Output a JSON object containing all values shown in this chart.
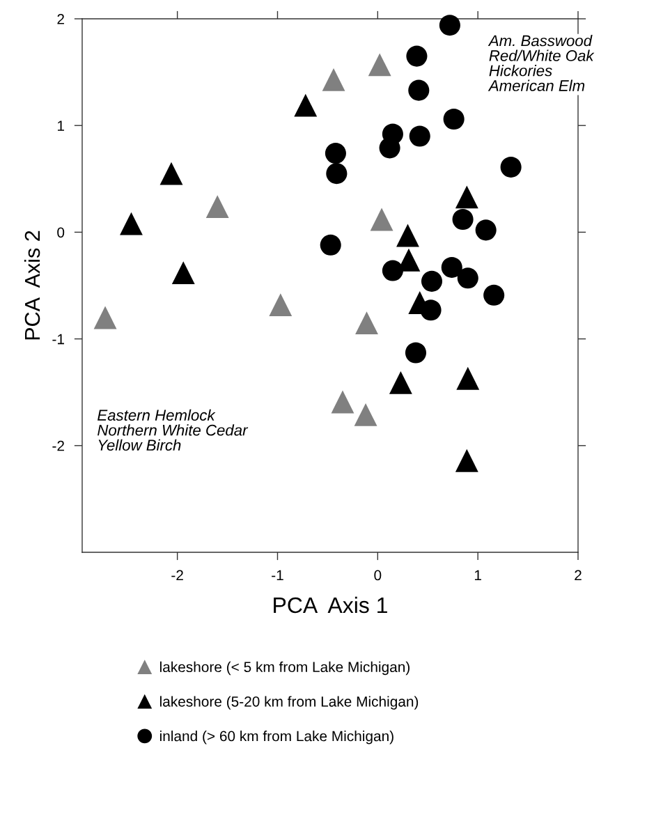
{
  "chart_data": {
    "type": "scatter",
    "xlabel": "PCA  Axis 1",
    "ylabel": "PCA  Axis 2",
    "xlim": [
      -2.95,
      2
    ],
    "ylim": [
      -3,
      2
    ],
    "xticks": [
      -2,
      -1,
      0,
      1,
      2
    ],
    "yticks": [
      -2,
      -1,
      0,
      1,
      2
    ],
    "grid": false,
    "legend": "bottom",
    "annotations": [
      "Am. Basswood\nRed/White Oak\nHickories\nAmerican Elm",
      "Eastern Hemlock\nNorthern White Cedar\nYellow Birch"
    ],
    "series": [
      {
        "name": "lakeshore (< 5 km from Lake Michigan)",
        "color": "#808080",
        "marker": "triangle",
        "x": [
          -0.44,
          0.02,
          -1.6,
          0.04,
          -2.72,
          -0.97,
          -0.11,
          -0.35,
          -0.12
        ],
        "values": [
          1.43,
          1.57,
          0.24,
          0.12,
          -0.8,
          -0.68,
          -0.85,
          -1.59,
          -1.71
        ]
      },
      {
        "name": "lakeshore (5-20 km from Lake Michigan)",
        "color": "#000000",
        "marker": "triangle",
        "x": [
          -0.72,
          -2.06,
          -2.46,
          -1.94,
          0.89,
          0.3,
          0.31,
          0.42,
          0.23,
          0.9,
          0.89
        ],
        "values": [
          1.19,
          0.55,
          0.08,
          -0.38,
          0.33,
          -0.03,
          -0.26,
          -0.66,
          -1.41,
          -1.37,
          -2.14
        ]
      },
      {
        "name": "inland (> 60 km from Lake Michigan)",
        "color": "#000000",
        "marker": "circle",
        "x": [
          -0.42,
          -0.41,
          -0.47,
          0.72,
          0.39,
          0.41,
          0.76,
          0.15,
          0.42,
          0.12,
          1.33,
          0.85,
          1.08,
          0.15,
          0.74,
          0.54,
          0.9,
          1.16,
          0.53,
          0.38
        ],
        "values": [
          0.74,
          0.55,
          -0.12,
          1.94,
          1.65,
          1.33,
          1.06,
          0.92,
          0.9,
          0.79,
          0.61,
          0.12,
          0.02,
          -0.36,
          -0.33,
          -0.46,
          -0.43,
          -0.59,
          -0.73,
          -1.13
        ]
      }
    ]
  }
}
